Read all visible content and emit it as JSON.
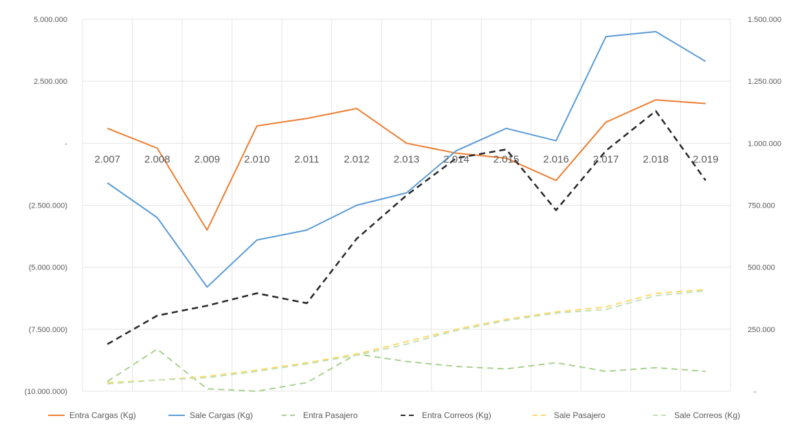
{
  "chart_data": {
    "type": "line",
    "title": "",
    "categories": [
      "2.007",
      "2.008",
      "2.009",
      "2.010",
      "2.011",
      "2.012",
      "2.013",
      "2.014",
      "2.015",
      "2.016",
      "2.017",
      "2.018",
      "2.019"
    ],
    "y_left": {
      "min": -10000000,
      "max": 5000000,
      "ticks": [
        {
          "value": 5000000,
          "label": "5.000.000"
        },
        {
          "value": 2500000,
          "label": "2.500.000"
        },
        {
          "value": 0,
          "label": "-"
        },
        {
          "value": -2500000,
          "label": "(2.500.000)"
        },
        {
          "value": -5000000,
          "label": "(5.000.000)"
        },
        {
          "value": -7500000,
          "label": "(7.500.000)"
        },
        {
          "value": -10000000,
          "label": "(10.000.000)"
        }
      ]
    },
    "y_right": {
      "min": 0,
      "max": 1500000,
      "ticks": [
        {
          "value": 1500000,
          "label": "1.500.000"
        },
        {
          "value": 1250000,
          "label": "1.250.000"
        },
        {
          "value": 1000000,
          "label": "1.000.000"
        },
        {
          "value": 750000,
          "label": "750.000"
        },
        {
          "value": 500000,
          "label": "500.000"
        },
        {
          "value": 250000,
          "label": "250.000"
        },
        {
          "value": 0,
          "label": "-"
        }
      ]
    },
    "grid": true,
    "legend_position": "bottom",
    "series": [
      {
        "name": "Entra Cargas (Kg)",
        "axis": "left",
        "color": "#ED7D31",
        "dash": "solid",
        "values": [
          600000,
          -200000,
          -3500000,
          700000,
          1000000,
          1400000,
          0,
          -400000,
          -600000,
          -1500000,
          850000,
          1750000,
          1600000
        ]
      },
      {
        "name": "Sale  Cargas (Kg)",
        "axis": "left",
        "color": "#5B9BD5",
        "dash": "solid",
        "values": [
          -1600000,
          -3000000,
          -5800000,
          -3900000,
          -3500000,
          -2500000,
          -2000000,
          -300000,
          600000,
          100000,
          4300000,
          4500000,
          3300000
        ]
      },
      {
        "name": "Entra Pasajero",
        "axis": "right",
        "color": "#A9D18E",
        "dash": "dashed",
        "values": [
          40000,
          170000,
          10000,
          0,
          35000,
          150000,
          120000,
          100000,
          90000,
          115000,
          80000,
          95000,
          80000
        ]
      },
      {
        "name": "Entra  Correos (Kg)",
        "axis": "right",
        "color": "#262626",
        "dash": "dashed",
        "values": [
          190000,
          305000,
          345000,
          395000,
          355000,
          615000,
          790000,
          940000,
          975000,
          730000,
          970000,
          1130000,
          850000
        ]
      },
      {
        "name": "Sale Pasajero",
        "axis": "right",
        "color": "#FFD966",
        "dash": "dashed",
        "values": [
          35000,
          45000,
          60000,
          85000,
          115000,
          150000,
          200000,
          250000,
          290000,
          320000,
          340000,
          395000,
          410000
        ]
      },
      {
        "name": "Sale  Correos (Kg)",
        "axis": "right",
        "color": "#C5E0B4",
        "dash": "dashed",
        "values": [
          30000,
          45000,
          55000,
          80000,
          110000,
          145000,
          190000,
          245000,
          285000,
          315000,
          330000,
          385000,
          405000
        ]
      }
    ]
  }
}
